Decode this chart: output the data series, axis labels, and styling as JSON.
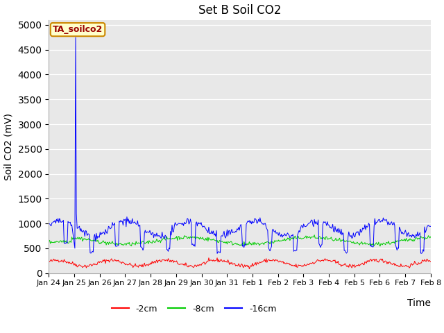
{
  "title": "Set B Soil CO2",
  "ylabel": "Soil CO2 (mV)",
  "xlabel": "Time",
  "ylim": [
    0,
    5100
  ],
  "yticks": [
    0,
    500,
    1000,
    1500,
    2000,
    2500,
    3000,
    3500,
    4000,
    4500,
    5000
  ],
  "bg_color": "#e8e8e8",
  "red_color": "#ff0000",
  "green_color": "#00cc00",
  "blue_color": "#0000ff",
  "legend_label": "TA_soilco2",
  "legend_bg": "#ffffcc",
  "legend_border_color": "#cc8800",
  "legend_text_color": "#990000",
  "labels": [
    "-2cm",
    "-8cm",
    "-16cm"
  ],
  "n_points": 500,
  "spike_value": 4750,
  "x_tick_labels": [
    "Jan 24",
    "Jan 25",
    "Jan 26",
    "Jan 27",
    "Jan 28",
    "Jan 29",
    "Jan 30",
    "Jan 31",
    "Feb 1",
    "Feb 2",
    "Feb 3",
    "Feb 4",
    "Feb 5",
    "Feb 6",
    "Feb 7",
    "Feb 8"
  ],
  "x_range": [
    0,
    15
  ],
  "title_fontsize": 12,
  "tick_fontsize": 8,
  "axis_label_fontsize": 10
}
